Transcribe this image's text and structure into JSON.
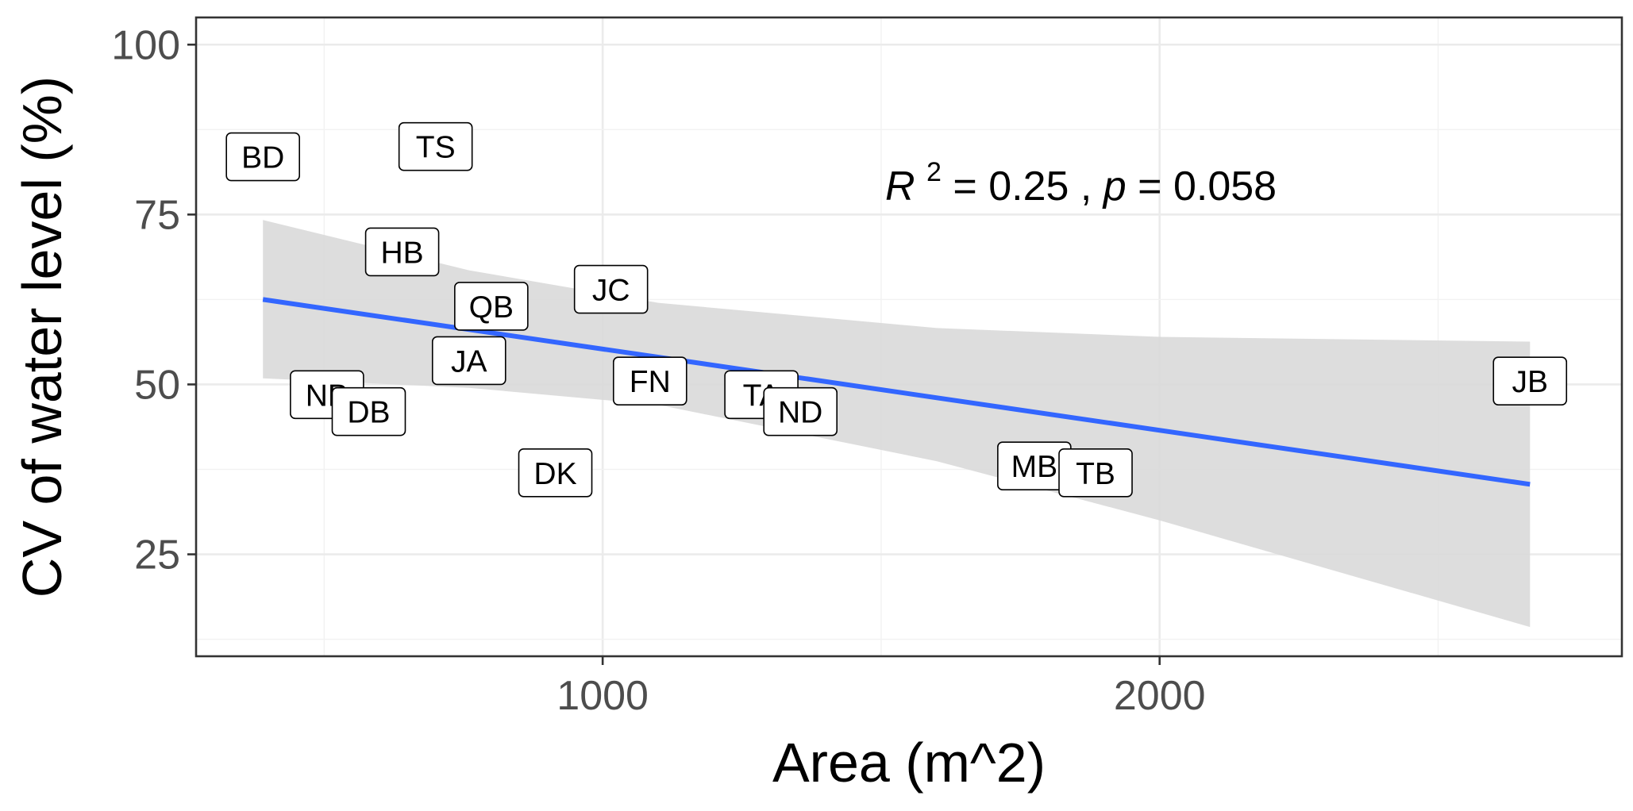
{
  "chart_data": {
    "type": "scatter",
    "xlabel": "Area (m^2)",
    "ylabel": "CV of water level (%)",
    "xlim": [
      270,
      2830
    ],
    "ylim": [
      10,
      104
    ],
    "x_ticks": [
      1000,
      2000
    ],
    "x_tick_labels": [
      "1000",
      "2000"
    ],
    "y_ticks": [
      25,
      50,
      75,
      100
    ],
    "y_tick_labels": [
      "25",
      "50",
      "75",
      "100"
    ],
    "grid": true,
    "points": [
      {
        "label": "BD",
        "x": 390,
        "y": 83.5
      },
      {
        "label": "TS",
        "x": 700,
        "y": 85
      },
      {
        "label": "HB",
        "x": 640,
        "y": 69.5
      },
      {
        "label": "QB",
        "x": 800,
        "y": 61.5
      },
      {
        "label": "JC",
        "x": 1015,
        "y": 64
      },
      {
        "label": "JA",
        "x": 760,
        "y": 53.5
      },
      {
        "label": "NB",
        "x": 505,
        "y": 48.5
      },
      {
        "label": "DB",
        "x": 580,
        "y": 46
      },
      {
        "label": "FN",
        "x": 1085,
        "y": 50.5
      },
      {
        "label": "TA",
        "x": 1285,
        "y": 48.5
      },
      {
        "label": "ND",
        "x": 1355,
        "y": 46
      },
      {
        "label": "DK",
        "x": 915,
        "y": 37
      },
      {
        "label": "MB",
        "x": 1775,
        "y": 38
      },
      {
        "label": "TB",
        "x": 1885,
        "y": 37
      },
      {
        "label": "JB",
        "x": 2665,
        "y": 50.5
      }
    ],
    "fit_line": {
      "x": [
        390,
        2665
      ],
      "y": [
        62.5,
        35.3
      ],
      "color": "#3366ff",
      "ci_band": {
        "x": [
          390,
          760,
          1100,
          1600,
          2000,
          2665
        ],
        "upper": [
          74.2,
          66.8,
          62.0,
          58.3,
          57.0,
          56.3
        ],
        "lower": [
          50.9,
          49.5,
          47.0,
          38.7,
          30.0,
          14.3
        ],
        "color": "#d9d9d9"
      }
    },
    "annotation": {
      "r_symbol": "R",
      "r_exponent": "2",
      "r_value": " = 0.25 , ",
      "p_symbol": "p",
      "p_value": " = 0.058"
    }
  }
}
